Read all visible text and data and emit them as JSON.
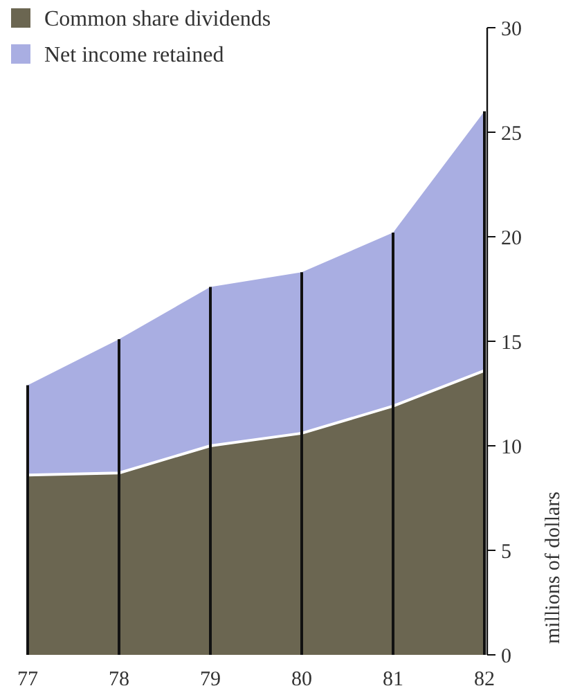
{
  "chart_data": {
    "type": "area",
    "stacked": true,
    "x": [
      1977,
      1978,
      1979,
      1980,
      1981,
      1982
    ],
    "xlim": [
      1977,
      1982
    ],
    "xticks": [
      {
        "value": 1977,
        "label": "77"
      },
      {
        "value": 1978,
        "label": "78"
      },
      {
        "value": 1979,
        "label": "79"
      },
      {
        "value": 1980,
        "label": "80"
      },
      {
        "value": 1981,
        "label": "81"
      },
      {
        "value": 1982,
        "label": "82"
      }
    ],
    "series": [
      {
        "name": "Common share dividends",
        "color": "#6b6651",
        "values": [
          8.6,
          8.7,
          10.0,
          10.6,
          11.9,
          13.6
        ]
      },
      {
        "name": "Net income retained",
        "color": "#a9aee2",
        "values": [
          4.3,
          6.4,
          7.6,
          7.7,
          8.3,
          12.4
        ]
      }
    ],
    "ref_lines": [
      {
        "axis": "x",
        "value": 1977,
        "color": "#111111"
      },
      {
        "axis": "x",
        "value": 1978,
        "color": "#111111"
      },
      {
        "axis": "x",
        "value": 1979,
        "color": "#111111"
      },
      {
        "axis": "x",
        "value": 1980,
        "color": "#111111"
      },
      {
        "axis": "x",
        "value": 1981,
        "color": "#111111"
      },
      {
        "axis": "x",
        "value": 1982,
        "color": "#111111"
      }
    ],
    "ylim": [
      0,
      30
    ],
    "yticks": [
      0,
      5,
      10,
      15,
      20,
      25,
      30
    ],
    "ylabel": "millions of dollars",
    "legend": "top left"
  }
}
